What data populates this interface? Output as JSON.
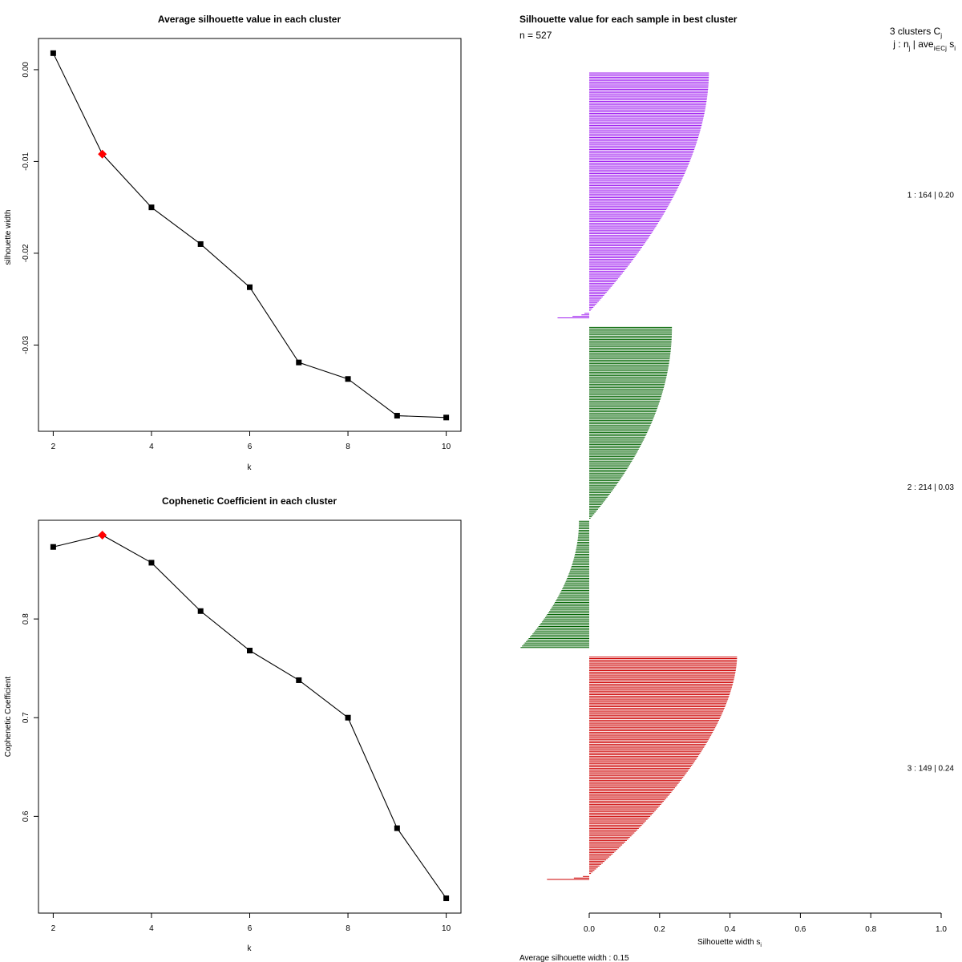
{
  "chart_data": [
    {
      "type": "line",
      "title": "Average silhouette value in each cluster",
      "xlabel": "k",
      "ylabel": "silhouette width",
      "x": [
        2,
        3,
        4,
        5,
        6,
        7,
        8,
        9,
        10
      ],
      "values": [
        0.0018,
        -0.0092,
        -0.015,
        -0.019,
        -0.0237,
        -0.0319,
        -0.0337,
        -0.0377,
        -0.0379
      ],
      "highlight_x": 3,
      "xlim": [
        1.7,
        10.3
      ],
      "ylim": [
        -0.0394,
        0.0034
      ],
      "xticks": [
        "2",
        "4",
        "6",
        "8",
        "10"
      ],
      "yticks": [
        "0.00",
        "-0.01",
        "-0.02",
        "-0.03"
      ],
      "colors": {
        "line": "#000000",
        "point": "#000000",
        "highlight": "#ff0000"
      }
    },
    {
      "type": "line",
      "title": "Cophenetic Coefficient in each cluster",
      "xlabel": "k",
      "ylabel": "Cophenetic Coefficient",
      "x": [
        2,
        3,
        4,
        5,
        6,
        7,
        8,
        9,
        10
      ],
      "values": [
        0.873,
        0.885,
        0.857,
        0.808,
        0.768,
        0.738,
        0.7,
        0.588,
        0.517
      ],
      "highlight_x": 3,
      "xlim": [
        1.7,
        10.3
      ],
      "ylim": [
        0.502,
        0.9
      ],
      "xticks": [
        "2",
        "4",
        "6",
        "8",
        "10"
      ],
      "yticks": [
        "0.6",
        "0.7",
        "0.8"
      ],
      "colors": {
        "line": "#000000",
        "point": "#000000",
        "highlight": "#ff0000"
      }
    },
    {
      "type": "bar",
      "orientation": "horizontal",
      "title": "Silhouette value for each sample in best cluster",
      "n_label": "n = 527",
      "xlabel": "Silhouette width s",
      "xlabel_sub": "i",
      "xlim": [
        0,
        1
      ],
      "xticks": [
        "0.0",
        "0.2",
        "0.4",
        "0.6",
        "0.8",
        "1.0"
      ],
      "footer": "Average silhouette width :  0.15",
      "legend": {
        "count_text": "3  clusters  C",
        "count_sub": "j",
        "header_text": "j :  n",
        "header_sub": "j",
        "header_mid": " | ave",
        "header_mid_sub": "i∈Cj",
        "header_tail": " s",
        "header_tail_sub": "i"
      },
      "clusters": [
        {
          "id": 1,
          "n": 164,
          "avg": 0.2,
          "label": "1 :   164  |  0.20",
          "color": "#a020f0",
          "max": 0.34,
          "min": -0.09,
          "neg_count": 4,
          "shape": 0.85
        },
        {
          "id": 2,
          "n": 214,
          "avg": 0.03,
          "label": "2 :   214  |  0.03",
          "color": "#006400",
          "max": 0.235,
          "min": -0.195,
          "neg_count": 85,
          "shape": 1.0
        },
        {
          "id": 3,
          "n": 149,
          "avg": 0.24,
          "label": "3 :   149  |  0.24",
          "color": "#cd0000",
          "max": 0.42,
          "min": -0.12,
          "neg_count": 3,
          "shape": 0.7
        }
      ]
    }
  ]
}
